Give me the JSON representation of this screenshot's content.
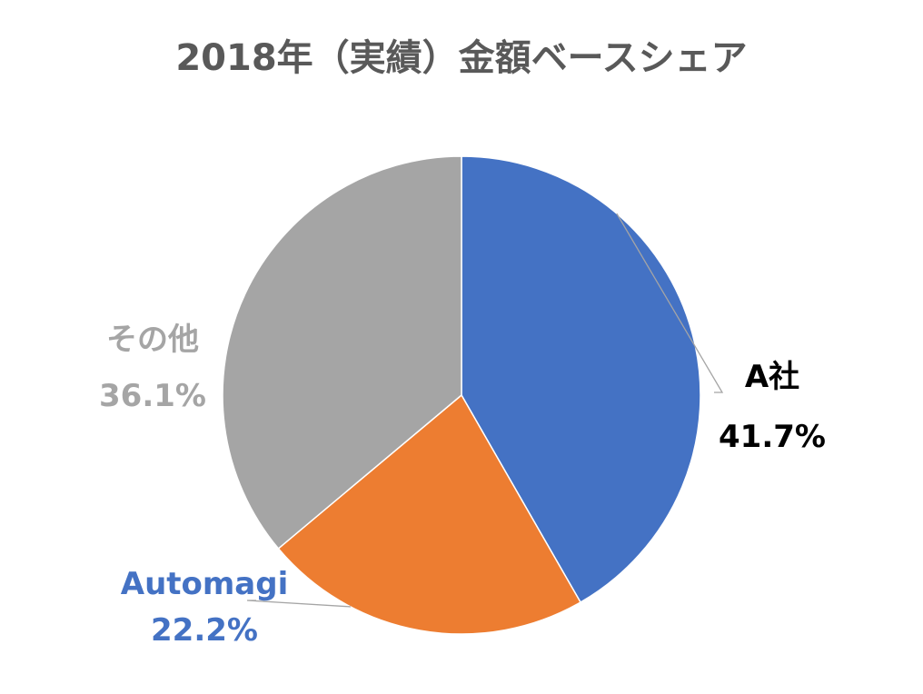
{
  "chart_data": {
    "type": "pie",
    "title": "2018年（実績）金額ベースシェア",
    "slices": [
      {
        "name": "A社",
        "value": 41.7,
        "label": "41.7%",
        "color": "#4472C4",
        "label_color": "#000000"
      },
      {
        "name": "Automagi",
        "value": 22.2,
        "label": "22.2%",
        "color": "#ED7D31",
        "label_color": "#4472C4"
      },
      {
        "name": "その他",
        "value": 36.1,
        "label": "36.1%",
        "color": "#A5A5A5",
        "label_color": "#A5A5A5"
      }
    ],
    "start_angle": "12 o'clock",
    "direction": "clockwise",
    "legend": "none",
    "leader_line_color": "#A5A5A5"
  },
  "colors": {
    "title": "#595959",
    "background": "#FFFFFF"
  }
}
